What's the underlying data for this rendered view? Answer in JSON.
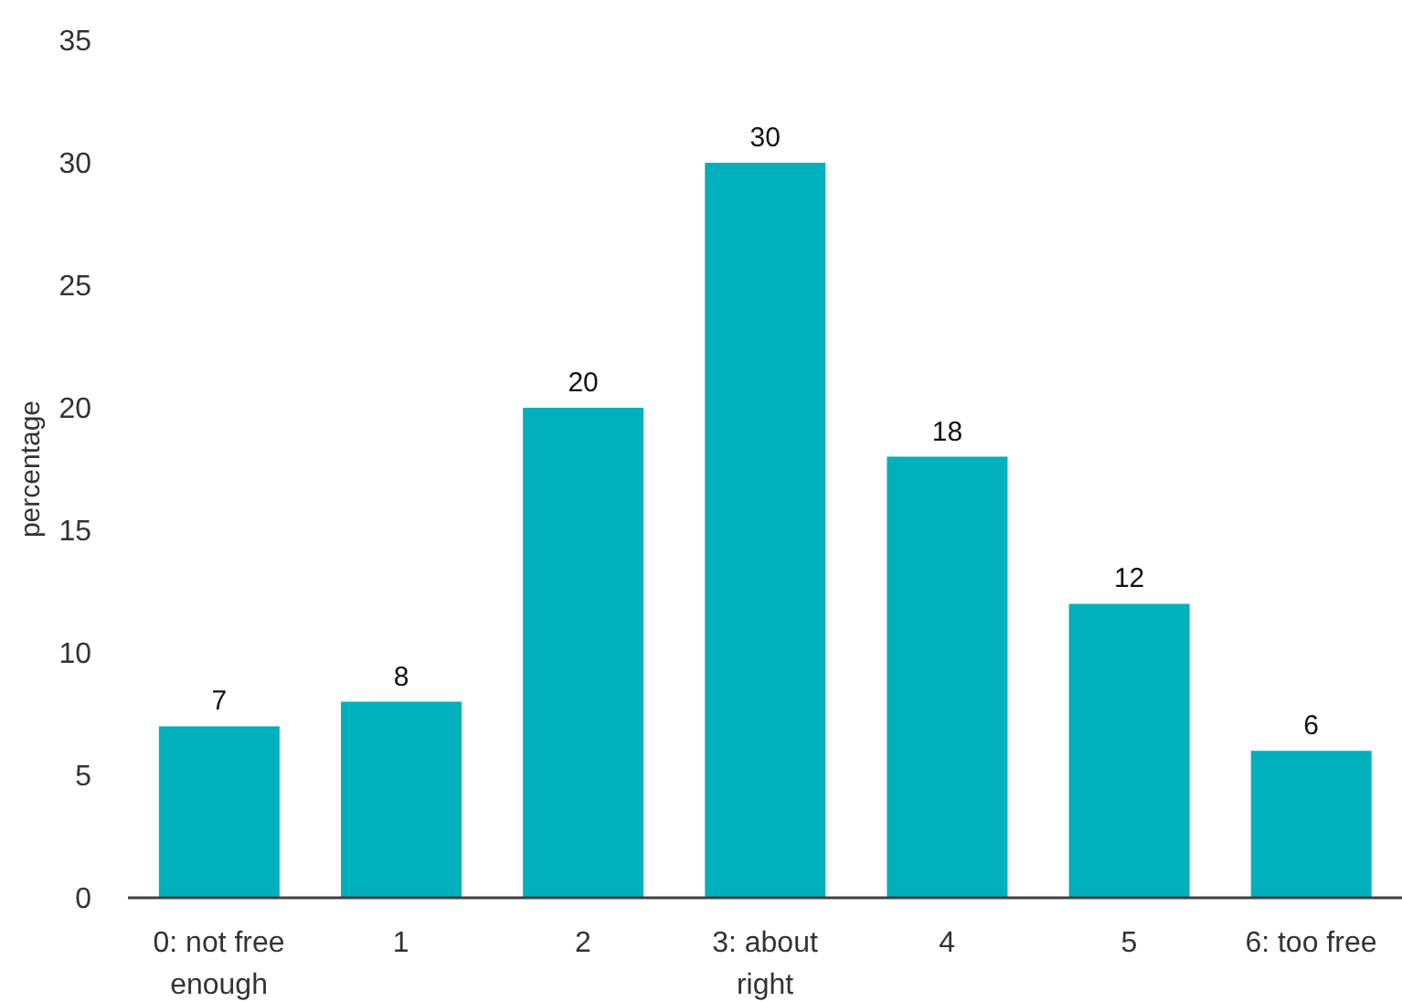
{
  "chart_data": {
    "type": "bar",
    "ylabel": "percentage",
    "categories": [
      "0: not free enough",
      "1",
      "2",
      "3: about right",
      "4",
      "5",
      "6: too free"
    ],
    "values": [
      7,
      8,
      20,
      30,
      18,
      12,
      6
    ],
    "color": "#00b0bc",
    "ylim": [
      0,
      35
    ],
    "yticks": [
      0,
      5,
      10,
      15,
      20,
      25,
      30,
      35
    ],
    "grid": false,
    "data_labels": true
  }
}
